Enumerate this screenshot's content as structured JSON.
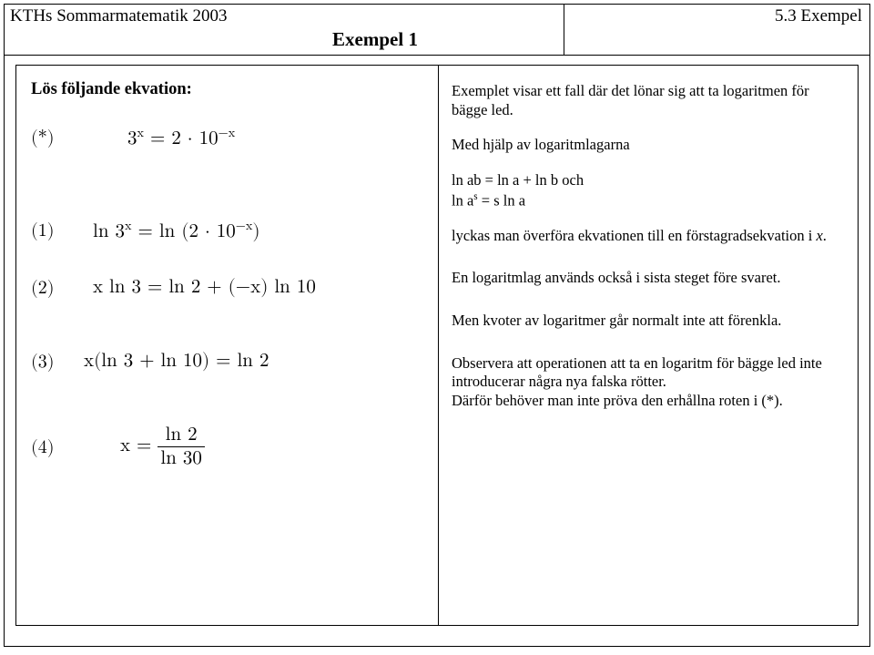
{
  "header": {
    "course": "KTHs Sommarmatematik 2003",
    "section": "5.3 Exempel",
    "title": "Exempel 1"
  },
  "left": {
    "heading": "Lös följande ekvation:",
    "eq_star_label": "(*)",
    "eq_star_html": "3<sup>x</sup> = 2 · 10<sup>−x</sup>",
    "eq1_label": "(1)",
    "eq1_html": "ln 3<sup>x</sup> = ln (2 · 10<sup>−x</sup>)",
    "eq2_label": "(2)",
    "eq2_html": "x ln 3 = ln 2 + (−x) ln 10",
    "eq3_label": "(3)",
    "eq3_html": "x(ln 3 + ln 10) = ln 2",
    "eq4_label": "(4)",
    "eq4_prefix": "x = ",
    "eq4_num": "ln 2",
    "eq4_den": "ln 30"
  },
  "right": {
    "p1": "Exemplet visar ett fall där det lönar sig att ta logaritmen för bägge led.",
    "p2": "Med hjälp av logaritmlagarna",
    "law1": "ln ab = ln a + ln b och",
    "law2_html": "ln a<sup>s</sup> = s ln a",
    "p3_html": "lyckas man överföra ekvationen till en förstagradsekvation i <span class=\"ital\">x</span>.",
    "p4": "En logaritmlag används också i sista steget före svaret.",
    "p5": "Men kvoter av logaritmer går normalt inte att förenkla.",
    "p6": "Observera att operationen att ta en logaritm för bägge led inte introducerar några nya falska rötter.",
    "p7": "Därför behöver man inte pröva den erhållna roten i (*)."
  }
}
